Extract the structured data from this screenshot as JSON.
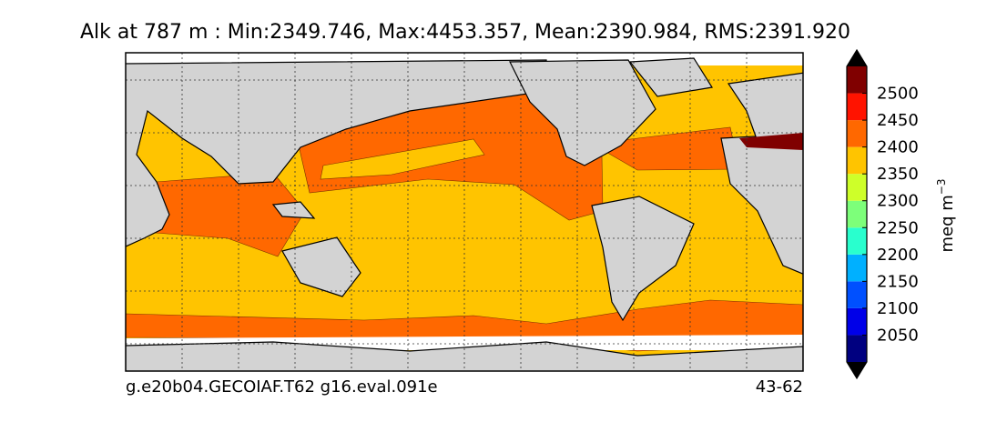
{
  "title": "Alk at 787 m : Min:2349.746, Max:4453.357, Mean:2390.984, RMS:2391.920",
  "footer_left": "g.e20b04.GECOIAF.T62 g16.eval.091e",
  "footer_right": "43-62",
  "colorbar": {
    "label": "meq m",
    "label_exponent": "−3",
    "lim": [
      2000,
      2550
    ],
    "ticks": [
      2050,
      2100,
      2150,
      2200,
      2250,
      2300,
      2350,
      2400,
      2450,
      2500
    ],
    "colors": [
      "#000080",
      "#0000e8",
      "#0050ff",
      "#00b0ff",
      "#29ffce",
      "#7dff7a",
      "#ceff29",
      "#ffc400",
      "#ff6800",
      "#ff1300",
      "#800000"
    ]
  }
}
